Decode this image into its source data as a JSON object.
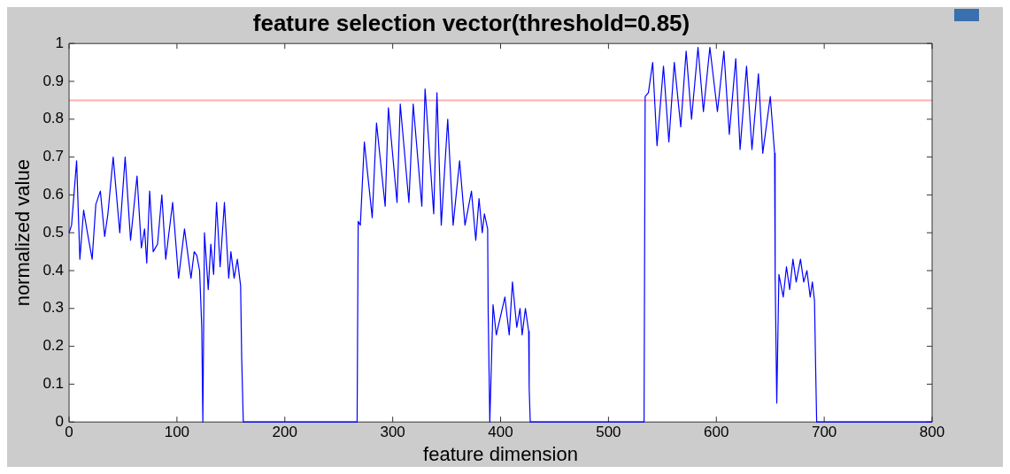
{
  "chart_data": {
    "type": "line",
    "title": "feature selection vector(threshold=0.85)",
    "xlabel": "feature dimension",
    "ylabel": "normalized value",
    "xlim": [
      0,
      800
    ],
    "xticks": [
      0,
      100,
      200,
      300,
      400,
      500,
      600,
      700,
      800
    ],
    "ylim": [
      0,
      1
    ],
    "yticks": [
      0,
      0.1,
      0.2,
      0.3,
      0.4,
      0.5,
      0.6,
      0.7,
      0.8,
      0.9,
      1
    ],
    "grid": false,
    "legend": false,
    "marker": "none",
    "line_style": "solid",
    "ref_lines": [
      {
        "axis": "y",
        "value": 0.85,
        "color": "#ffb0b0",
        "line_style": "solid"
      }
    ],
    "series": [
      {
        "color": "#0000ff",
        "x": [
          0,
          2.3,
          7,
          10,
          13.5,
          17,
          21.4,
          24.8,
          29,
          33,
          36,
          40.9,
          47,
          52,
          57,
          63,
          67,
          70,
          72,
          74.7,
          78,
          82,
          86,
          89.6,
          96,
          101.5,
          107,
          113,
          116,
          118.4,
          121,
          123,
          124,
          125.5,
          129,
          131.4,
          134,
          136.7,
          140,
          144,
          148,
          150,
          153,
          156,
          159,
          160,
          161.5,
          200,
          267,
          268,
          270,
          273.7,
          281,
          285,
          293,
          296,
          304,
          307,
          315,
          319,
          327,
          330,
          338,
          341,
          345,
          351,
          356,
          362,
          367,
          373,
          377,
          380,
          383,
          385,
          388,
          388.5,
          390,
          393,
          396,
          404,
          408,
          411,
          415,
          418,
          420,
          423,
          426,
          426.5,
          427.5,
          500,
          533,
          534,
          537,
          541,
          545,
          551,
          556,
          561,
          567,
          572,
          577,
          583,
          588,
          594,
          601,
          607,
          612,
          618,
          622,
          628,
          633,
          639,
          643,
          650,
          654,
          654.5,
          656,
          658,
          662,
          665,
          668,
          671,
          674,
          678,
          681,
          684,
          687,
          689,
          691,
          692,
          693,
          750,
          800
        ],
        "values": [
          0.5,
          0.52,
          0.69,
          0.43,
          0.56,
          0.5,
          0.43,
          0.575,
          0.61,
          0.49,
          0.55,
          0.7,
          0.5,
          0.7,
          0.48,
          0.65,
          0.46,
          0.51,
          0.42,
          0.61,
          0.45,
          0.47,
          0.6,
          0.43,
          0.58,
          0.38,
          0.51,
          0.38,
          0.45,
          0.44,
          0.4,
          0.25,
          0,
          0.5,
          0.35,
          0.47,
          0.39,
          0.58,
          0.41,
          0.58,
          0.38,
          0.45,
          0.38,
          0.43,
          0.36,
          0.17,
          0,
          0,
          0,
          0.53,
          0.52,
          0.74,
          0.54,
          0.79,
          0.57,
          0.83,
          0.58,
          0.84,
          0.58,
          0.84,
          0.57,
          0.88,
          0.55,
          0.87,
          0.52,
          0.8,
          0.52,
          0.69,
          0.52,
          0.61,
          0.48,
          0.59,
          0.5,
          0.55,
          0.51,
          0.29,
          0,
          0.31,
          0.23,
          0.33,
          0.23,
          0.37,
          0.25,
          0.3,
          0.23,
          0.3,
          0.24,
          0.09,
          0,
          0,
          0,
          0.86,
          0.87,
          0.95,
          0.73,
          0.94,
          0.74,
          0.95,
          0.78,
          0.98,
          0.8,
          0.99,
          0.82,
          0.99,
          0.82,
          0.98,
          0.76,
          0.96,
          0.72,
          0.94,
          0.72,
          0.92,
          0.71,
          0.86,
          0.71,
          0.39,
          0.05,
          0.39,
          0.33,
          0.41,
          0.35,
          0.43,
          0.37,
          0.43,
          0.37,
          0.4,
          0.33,
          0.37,
          0.32,
          0.15,
          0,
          0,
          0
        ]
      }
    ]
  }
}
